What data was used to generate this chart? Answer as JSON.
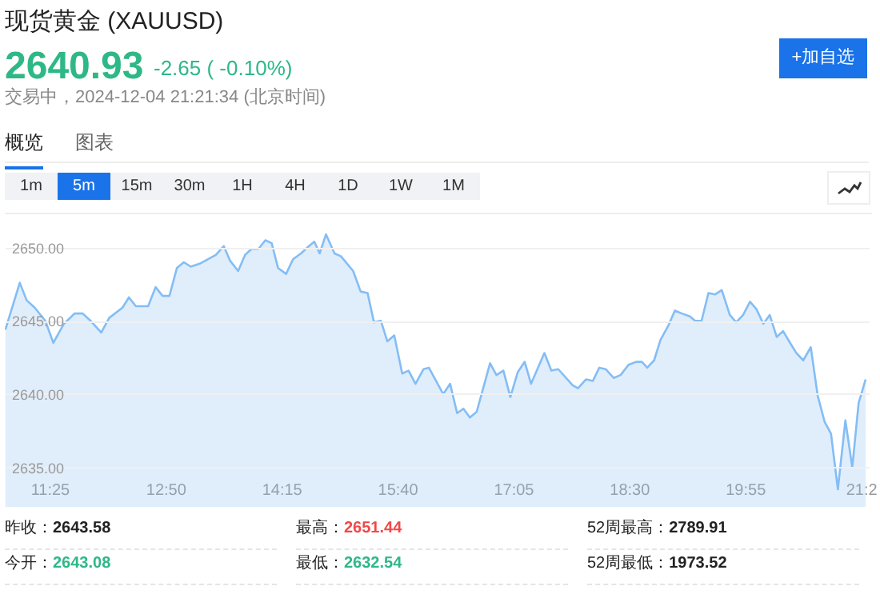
{
  "chart_data": {
    "type": "area",
    "title": "现货黄金 (XAUUSD)",
    "annotations": [
      "2640.93",
      "-2.65 ( -0.10%)",
      "交易中，2024-12-04 21:21:34 (北京时间)",
      "+加自选",
      "概览",
      "图表",
      "1m",
      "5m",
      "15m",
      "30m",
      "1H",
      "4H",
      "1D",
      "1W",
      "1M",
      "昨收：2643.58",
      "最高：2651.44",
      "52周最高：2789.91",
      "今开：2643.08",
      "最低：2632.54",
      "52周最低：1973.52"
    ],
    "x": [
      10.877,
      11.053,
      11.137,
      11.235,
      11.365,
      11.463,
      11.593,
      11.723,
      11.821,
      11.919,
      12.049,
      12.146,
      12.309,
      12.387,
      12.472,
      12.622,
      12.713,
      12.798,
      12.882,
      12.973,
      13.058,
      13.143,
      13.253,
      13.351,
      13.449,
      13.546,
      13.624,
      13.722,
      13.807,
      13.885,
      13.969,
      14.054,
      14.132,
      14.21,
      14.308,
      14.393,
      14.49,
      14.588,
      14.653,
      14.718,
      14.796,
      14.9,
      14.979,
      15.128,
      15.219,
      15.304,
      15.382,
      15.467,
      15.545,
      15.63,
      15.727,
      15.805,
      15.89,
      15.988,
      16.053,
      16.15,
      16.228,
      16.313,
      16.398,
      16.476,
      16.554,
      16.638,
      16.801,
      16.879,
      16.964,
      17.049,
      17.14,
      17.224,
      17.302,
      17.465,
      17.55,
      17.634,
      17.81,
      17.875,
      17.973,
      18.058,
      18.136,
      18.214,
      18.312,
      18.396,
      18.494,
      18.591,
      18.657,
      18.722,
      18.806,
      18.884,
      18.982,
      19.06,
      19.145,
      19.243,
      19.308,
      19.386,
      19.47,
      19.549,
      19.633,
      19.731,
      19.809,
      19.894,
      19.978,
      20.056,
      20.141,
      20.219,
      20.304,
      20.382,
      20.467,
      20.545,
      20.629,
      20.721,
      20.805,
      20.89,
      20.968,
      21.052,
      21.144,
      21.228,
      21.306,
      21.391
    ],
    "series": [
      {
        "color": "#84bdf5",
        "values": [
          2644.4,
          2647.6,
          2646.4,
          2645.9,
          2645.0,
          2643.5,
          2644.8,
          2645.5,
          2645.5,
          2645.0,
          2644.2,
          2645.2,
          2645.9,
          2646.6,
          2646.0,
          2646.0,
          2647.3,
          2646.7,
          2646.7,
          2648.6,
          2649.0,
          2648.7,
          2648.9,
          2649.2,
          2649.5,
          2650.1,
          2649.1,
          2648.4,
          2649.5,
          2649.9,
          2649.9,
          2650.5,
          2650.3,
          2648.6,
          2648.2,
          2649.2,
          2649.6,
          2650.1,
          2650.4,
          2649.6,
          2650.9,
          2649.6,
          2649.4,
          2648.4,
          2647.0,
          2646.9,
          2644.9,
          2645.0,
          2643.6,
          2644.0,
          2641.4,
          2641.6,
          2640.7,
          2641.7,
          2641.8,
          2640.8,
          2640.0,
          2640.7,
          2638.7,
          2639.0,
          2638.4,
          2638.8,
          2642.1,
          2641.3,
          2641.6,
          2639.8,
          2641.5,
          2642.2,
          2640.7,
          2642.8,
          2641.6,
          2641.7,
          2640.6,
          2640.4,
          2641.0,
          2640.9,
          2641.8,
          2641.7,
          2641.1,
          2641.3,
          2642.0,
          2642.2,
          2642.2,
          2641.8,
          2642.3,
          2643.7,
          2644.7,
          2645.7,
          2645.5,
          2645.3,
          2645.0,
          2645.0,
          2646.9,
          2646.8,
          2647.1,
          2645.4,
          2644.9,
          2645.4,
          2646.3,
          2645.8,
          2644.8,
          2645.4,
          2643.9,
          2644.3,
          2643.5,
          2642.8,
          2642.3,
          2643.2,
          2639.9,
          2638.1,
          2637.3,
          2633.5,
          2638.2,
          2635.0,
          2639.4,
          2641.0
        ]
      }
    ],
    "xlim": [
      10.87,
      21.43
    ],
    "xticks": [
      {
        "value": 11.4167,
        "label": "11:25"
      },
      {
        "value": 12.8333,
        "label": "12:50"
      },
      {
        "value": 14.25,
        "label": "14:15"
      },
      {
        "value": 15.6667,
        "label": "15:40"
      },
      {
        "value": 17.0833,
        "label": "17:05"
      },
      {
        "value": 18.5,
        "label": "18:30"
      },
      {
        "value": 19.9167,
        "label": "19:55"
      },
      {
        "value": 21.3333,
        "label": "21:2"
      }
    ],
    "ylim": [
      2632.3,
      2651.4
    ],
    "yticks": [
      {
        "value": 2635,
        "label": "2635.00"
      },
      {
        "value": 2640,
        "label": "2640.00"
      },
      {
        "value": 2645,
        "label": "2645.00"
      },
      {
        "value": 2650,
        "label": "2650.00"
      }
    ],
    "grid": "y",
    "marker": "none",
    "line_style": "solid"
  }
}
